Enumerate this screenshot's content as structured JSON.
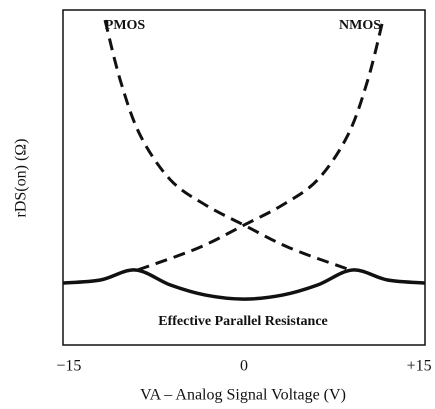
{
  "chart_data": {
    "type": "line",
    "x_label": "VA – Analog Signal Voltage (V)",
    "y_label": "rDS(on) (Ω)",
    "xlim": [
      -15.5,
      15.5
    ],
    "ylim": [
      0,
      100
    ],
    "xticks": [
      {
        "value": -15,
        "label": "−15"
      },
      0,
      {
        "value": 15,
        "label": "+15"
      }
    ],
    "series": [
      {
        "name": "PMOS",
        "color": "#111111",
        "dashed": true,
        "x": [
          -11.9,
          -10.6,
          -8.9,
          -6.3,
          -3.3,
          0,
          3.9,
          9.1
        ],
        "values": [
          97,
          79.1,
          62.7,
          49.3,
          41.8,
          35.8,
          29,
          22.4
        ]
      },
      {
        "name": "NMOS",
        "color": "#111111",
        "dashed": true,
        "x": [
          -9.1,
          -3.9,
          0,
          3.3,
          6.3,
          8.9,
          10.6,
          11.9
        ],
        "values": [
          22.4,
          29,
          35.8,
          41.8,
          49.3,
          62.7,
          79.1,
          97
        ]
      },
      {
        "name": "Effective Parallel Resistance",
        "color": "#111111",
        "dashed": false,
        "x": [
          -15.5,
          -12.3,
          -9.3,
          -6.3,
          -3.3,
          0,
          3.3,
          6.3,
          9.3,
          12.3,
          15.5
        ],
        "values": [
          18.5,
          19.4,
          22.4,
          17.9,
          14.9,
          13.7,
          14.9,
          17.9,
          22.4,
          19.4,
          18.5
        ]
      }
    ]
  }
}
